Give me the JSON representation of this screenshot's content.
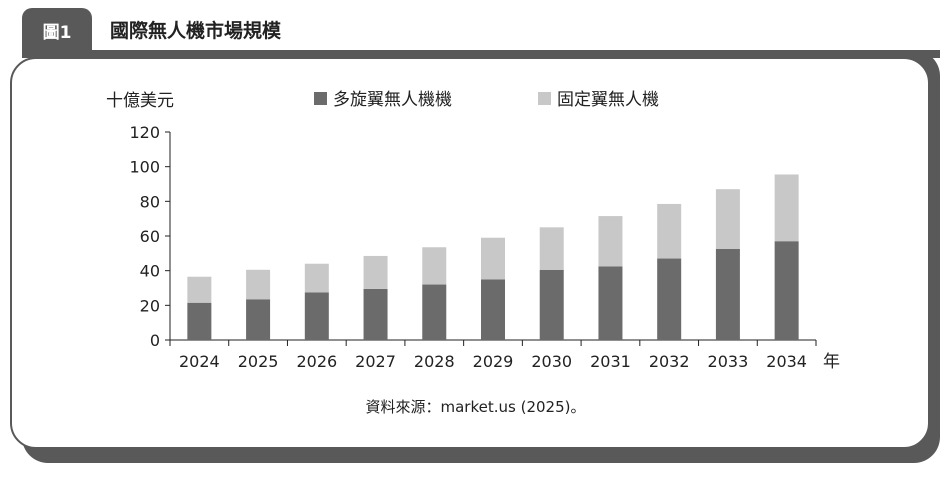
{
  "figure": {
    "tab_label": "圖1",
    "title": "國際無人機市場規模",
    "source": "資料來源：market.us (2025)。"
  },
  "chart_data": {
    "type": "bar",
    "stacked": true,
    "ylabel": "十億美元",
    "xunit": "年",
    "categories": [
      "2024",
      "2025",
      "2026",
      "2027",
      "2028",
      "2029",
      "2030",
      "2031",
      "2032",
      "2033",
      "2034"
    ],
    "ylim": [
      0,
      120
    ],
    "yticks": [
      0,
      20,
      40,
      60,
      80,
      100,
      120
    ],
    "grid": false,
    "legend_position": "top",
    "series": [
      {
        "name": "多旋翼無人機機",
        "color": "#6b6b6b",
        "values": [
          21.5,
          23.5,
          27.5,
          29.5,
          32,
          35,
          40.5,
          42.5,
          47,
          52.5,
          57
        ]
      },
      {
        "name": "固定翼無人機",
        "color": "#c8c8c8",
        "values": [
          15,
          17,
          16.5,
          19,
          21.5,
          24,
          24.5,
          29,
          31.5,
          34.5,
          38.5
        ]
      }
    ]
  }
}
